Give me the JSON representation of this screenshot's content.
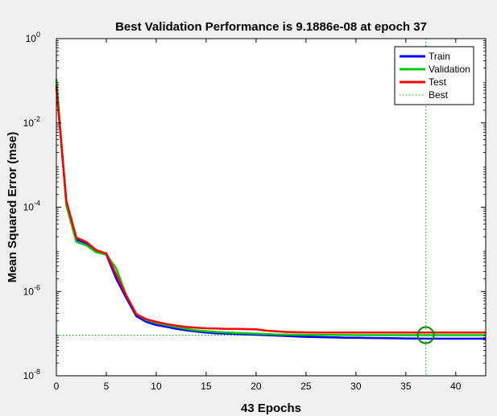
{
  "chart_data": {
    "type": "line",
    "title": "Best Validation Performance is 9.1886e-08 at epoch 37",
    "xlabel": "43 Epochs",
    "ylabel": "Mean Squared Error  (mse)",
    "xlim": [
      0,
      43
    ],
    "ylim": [
      1e-08,
      1
    ],
    "yscale": "log",
    "x_ticks": [
      0,
      5,
      10,
      15,
      20,
      25,
      30,
      35,
      40
    ],
    "y_ticks": [
      {
        "value": 1,
        "base": "10",
        "exp": "0"
      },
      {
        "value": 0.01,
        "base": "10",
        "exp": "-2"
      },
      {
        "value": 0.0001,
        "base": "10",
        "exp": "-4"
      },
      {
        "value": 1e-06,
        "base": "10",
        "exp": "-6"
      },
      {
        "value": 1e-08,
        "base": "10",
        "exp": "-8"
      }
    ],
    "grid": false,
    "legend_position": "top-right",
    "series": [
      {
        "name": "Train",
        "color": "#0000ff",
        "x": [
          0,
          1,
          2,
          3,
          4,
          5,
          6,
          7,
          8,
          9,
          10,
          11,
          12,
          13,
          14,
          15,
          16,
          17,
          18,
          19,
          20,
          21,
          22,
          23,
          24,
          25,
          26,
          27,
          28,
          29,
          30,
          31,
          32,
          33,
          34,
          35,
          36,
          37,
          38,
          39,
          40,
          41,
          42,
          43
        ],
        "y": [
          0.08,
          0.00012,
          1.7e-05,
          1.4e-05,
          9e-06,
          7.5e-06,
          2e-06,
          7e-07,
          2.6e-07,
          1.9e-07,
          1.6e-07,
          1.45e-07,
          1.3e-07,
          1.2e-07,
          1.12e-07,
          1.06e-07,
          1.02e-07,
          1e-07,
          9.8e-08,
          9.6e-08,
          9.4e-08,
          9.2e-08,
          9e-08,
          8.8e-08,
          8.6e-08,
          8.4e-08,
          8.3e-08,
          8.2e-08,
          8.1e-08,
          8e-08,
          7.95e-08,
          7.9e-08,
          7.85e-08,
          7.8e-08,
          7.75e-08,
          7.7e-08,
          7.65e-08,
          7.6e-08,
          7.6e-08,
          7.6e-08,
          7.6e-08,
          7.6e-08,
          7.6e-08,
          7.6e-08
        ]
      },
      {
        "name": "Validation",
        "color": "#00cc00",
        "x": [
          0,
          1,
          2,
          3,
          4,
          5,
          6,
          7,
          8,
          9,
          10,
          11,
          12,
          13,
          14,
          15,
          16,
          17,
          18,
          19,
          20,
          21,
          22,
          23,
          24,
          25,
          26,
          27,
          28,
          29,
          30,
          31,
          32,
          33,
          34,
          35,
          36,
          37,
          38,
          39,
          40,
          41,
          42,
          43
        ],
        "y": [
          0.11,
          0.00011,
          1.5e-05,
          1.25e-05,
          8.5e-06,
          7.5e-06,
          3.5e-06,
          8e-07,
          2.9e-07,
          2.1e-07,
          1.8e-07,
          1.6e-07,
          1.45e-07,
          1.3e-07,
          1.2e-07,
          1.14e-07,
          1.1e-07,
          1.07e-07,
          1.04e-07,
          1.02e-07,
          1e-07,
          9.8e-08,
          9.6e-08,
          9.5e-08,
          9.4e-08,
          9.35e-08,
          9.3e-08,
          9.28e-08,
          9.26e-08,
          9.24e-08,
          9.22e-08,
          9.21e-08,
          9.2e-08,
          9.2e-08,
          9.19e-08,
          9.19e-08,
          9.19e-08,
          9.1886e-08,
          9.19e-08,
          9.2e-08,
          9.2e-08,
          9.2e-08,
          9.2e-08,
          9.2e-08
        ]
      },
      {
        "name": "Test",
        "color": "#ff0000",
        "x": [
          0,
          1,
          2,
          3,
          4,
          5,
          6,
          7,
          8,
          9,
          10,
          11,
          12,
          13,
          14,
          15,
          16,
          17,
          18,
          19,
          20,
          21,
          22,
          23,
          24,
          25,
          26,
          27,
          28,
          29,
          30,
          31,
          32,
          33,
          34,
          35,
          36,
          37,
          38,
          39,
          40,
          41,
          42,
          43
        ],
        "y": [
          0.07,
          0.00014,
          1.9e-05,
          1.5e-05,
          9.5e-06,
          8e-06,
          2.5e-06,
          8e-07,
          2.9e-07,
          2.2e-07,
          1.9e-07,
          1.7e-07,
          1.55e-07,
          1.45e-07,
          1.38e-07,
          1.34e-07,
          1.32e-07,
          1.3e-07,
          1.29e-07,
          1.28e-07,
          1.27e-07,
          1.18e-07,
          1.13e-07,
          1.1e-07,
          1.08e-07,
          1.07e-07,
          1.06e-07,
          1.06e-07,
          1.06e-07,
          1.06e-07,
          1.06e-07,
          1.06e-07,
          1.06e-07,
          1.06e-07,
          1.06e-07,
          1.06e-07,
          1.06e-07,
          1.06e-07,
          1.06e-07,
          1.06e-07,
          1.06e-07,
          1.06e-07,
          1.06e-07,
          1.06e-07
        ]
      },
      {
        "name": "Best",
        "color": "#00aa00",
        "style": "dotted",
        "best_epoch": 37,
        "best_value": 9.1886e-08
      }
    ]
  }
}
